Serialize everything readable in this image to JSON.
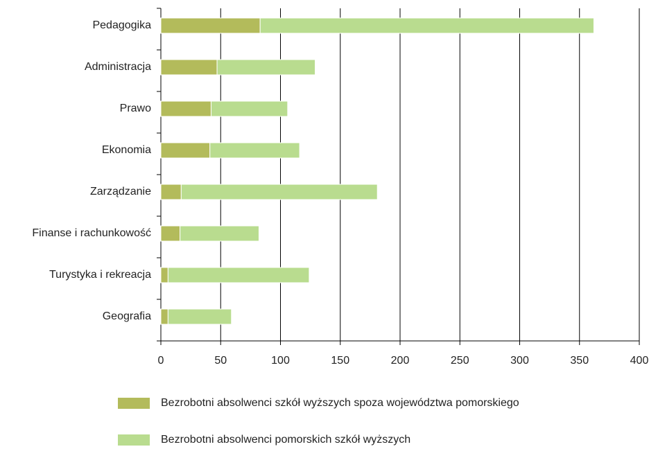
{
  "chart_data": {
    "type": "bar",
    "orientation": "horizontal",
    "stacked": true,
    "categories": [
      "Pedagogika",
      "Administracja",
      "Prawo",
      "Ekonomia",
      "Zarządzanie",
      "Finanse i rachunkowość",
      "Turystyka i rekreacja",
      "Geografia"
    ],
    "series": [
      {
        "name": "Bezrobotni absolwenci szkół wyższych spoza województwa pomorskiego",
        "color": "#b3bb5b",
        "values": [
          83,
          47,
          42,
          41,
          17,
          16,
          6,
          6
        ]
      },
      {
        "name": "Bezrobotni absolwenci pomorskich szkół wyższych",
        "color": "#b9dc8f",
        "values": [
          279,
          82,
          64,
          75,
          164,
          66,
          118,
          53
        ]
      }
    ],
    "xlim": [
      0,
      400
    ],
    "xticks": [
      0,
      50,
      100,
      150,
      200,
      250,
      300,
      350,
      400
    ],
    "grid": true
  }
}
